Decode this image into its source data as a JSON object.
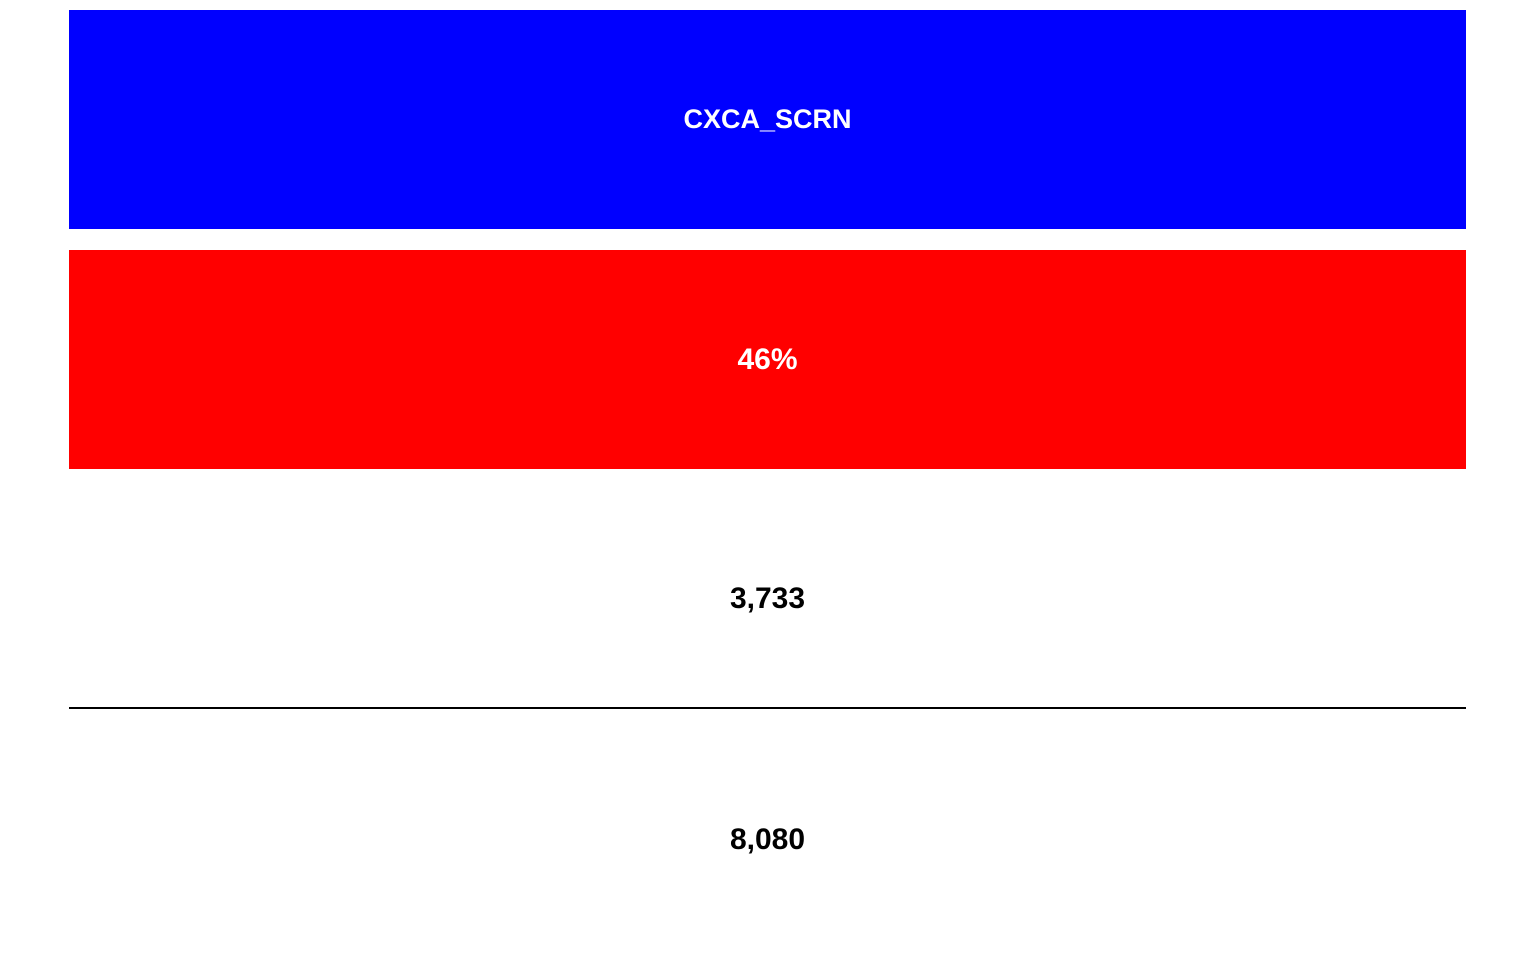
{
  "indicator": {
    "name": "CXCA_SCRN",
    "name_bg_color": "#0000FF",
    "name_text_color": "#FFFFFF"
  },
  "result": {
    "percent": "46%",
    "percent_value": 46,
    "percent_bg_color": "#FF0000",
    "percent_text_color": "#FFFFFF"
  },
  "fraction": {
    "numerator": "3,733",
    "denominator": "8,080",
    "divider_color": "#000000"
  }
}
